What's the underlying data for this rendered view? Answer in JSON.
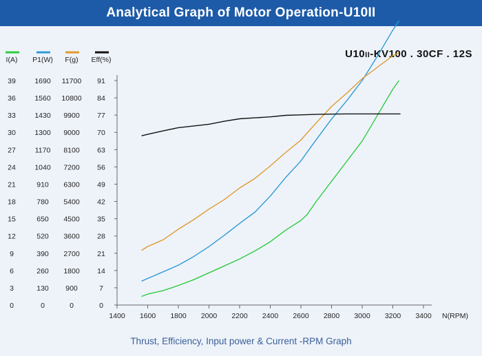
{
  "header": {
    "title": "Analytical Graph of Motor Operation-U10II"
  },
  "model": {
    "prefix": "U10",
    "sub": "II",
    "suffix": "-KV100 . 30CF . 12S"
  },
  "footer": {
    "caption": "Thrust, Efficiency, Input power & Current -RPM Graph"
  },
  "chart_data": {
    "type": "line",
    "title": "Analytical Graph of Motor Operation-U10II",
    "xlabel": "N(RPM)",
    "xlim": [
      1400,
      3400
    ],
    "x_ticks": [
      "1400",
      "1600",
      "1800",
      "2000",
      "2200",
      "2400",
      "2600",
      "2800",
      "3000",
      "3200",
      "3400"
    ],
    "grid": false,
    "legend_position": "top-left",
    "axes": [
      {
        "name": "I(A)",
        "color": "#2ecc40",
        "ticks": [
          "0",
          "3",
          "6",
          "9",
          "12",
          "15",
          "18",
          "21",
          "24",
          "27",
          "30",
          "33",
          "36",
          "39"
        ]
      },
      {
        "name": "P1(W)",
        "color": "#2e9bd6",
        "ticks": [
          "0",
          "130",
          "260",
          "390",
          "520",
          "650",
          "780",
          "910",
          "1040",
          "1170",
          "1300",
          "1430",
          "1560",
          "1690"
        ]
      },
      {
        "name": "F(g)",
        "color": "#e09a2c",
        "ticks": [
          "0",
          "900",
          "1800",
          "2700",
          "3600",
          "4500",
          "5400",
          "6300",
          "7200",
          "8100",
          "9000",
          "9900",
          "10800",
          "11700"
        ]
      },
      {
        "name": "Eff(%)",
        "color": "#111111",
        "ticks": [
          "0",
          "7",
          "14",
          "21",
          "28",
          "35",
          "42",
          "49",
          "56",
          "63",
          "70",
          "77",
          "84",
          "91"
        ]
      }
    ],
    "series": [
      {
        "name": "I(A)",
        "axis": 0,
        "color": "#2ecc40",
        "x": [
          1560,
          1600,
          1700,
          1800,
          1900,
          2000,
          2100,
          2200,
          2300,
          2400,
          2500,
          2600,
          2640,
          2700,
          2800,
          2900,
          3000,
          3100,
          3200,
          3240
        ],
        "y": [
          1.5,
          1.9,
          2.5,
          3.4,
          4.4,
          5.6,
          6.8,
          8.0,
          9.4,
          11.0,
          13.0,
          14.7,
          15.7,
          18.0,
          21.5,
          25.0,
          28.5,
          33.0,
          37.5,
          39.0
        ]
      },
      {
        "name": "P1(W)",
        "axis": 1,
        "color": "#2e9bd6",
        "x": [
          1560,
          1600,
          1700,
          1800,
          1900,
          2000,
          2100,
          2200,
          2300,
          2400,
          2500,
          2600,
          2640,
          2700,
          2800,
          2900,
          3000,
          3100,
          3200,
          3240
        ],
        "y": [
          180,
          200,
          250,
          300,
          365,
          440,
          525,
          615,
          700,
          820,
          960,
          1085,
          1150,
          1245,
          1400,
          1540,
          1690,
          1875,
          2070,
          2140
        ]
      },
      {
        "name": "F(g)",
        "axis": 2,
        "color": "#e09a2c",
        "x": [
          1560,
          1600,
          1700,
          1800,
          1900,
          2000,
          2100,
          2200,
          2300,
          2400,
          2500,
          2600,
          2700,
          2800,
          2900,
          3000,
          3100,
          3200,
          3240
        ],
        "y": [
          2850,
          3050,
          3400,
          3950,
          4450,
          5000,
          5500,
          6100,
          6600,
          7250,
          7950,
          8600,
          9500,
          10350,
          11050,
          11800,
          12400,
          13000,
          13150
        ]
      },
      {
        "name": "Eff(%)",
        "axis": 3,
        "color": "#111111",
        "x": [
          1560,
          1600,
          1700,
          1800,
          1900,
          2000,
          2100,
          2200,
          2300,
          2400,
          2500,
          2600,
          2700,
          2800,
          2900,
          3000,
          3100,
          3200,
          3250
        ],
        "y": [
          68.6,
          69.2,
          70.6,
          71.9,
          72.6,
          73.3,
          74.5,
          75.5,
          75.9,
          76.3,
          76.9,
          77.1,
          77.3,
          77.4,
          77.5,
          77.5,
          77.5,
          77.5,
          77.5
        ]
      }
    ]
  }
}
